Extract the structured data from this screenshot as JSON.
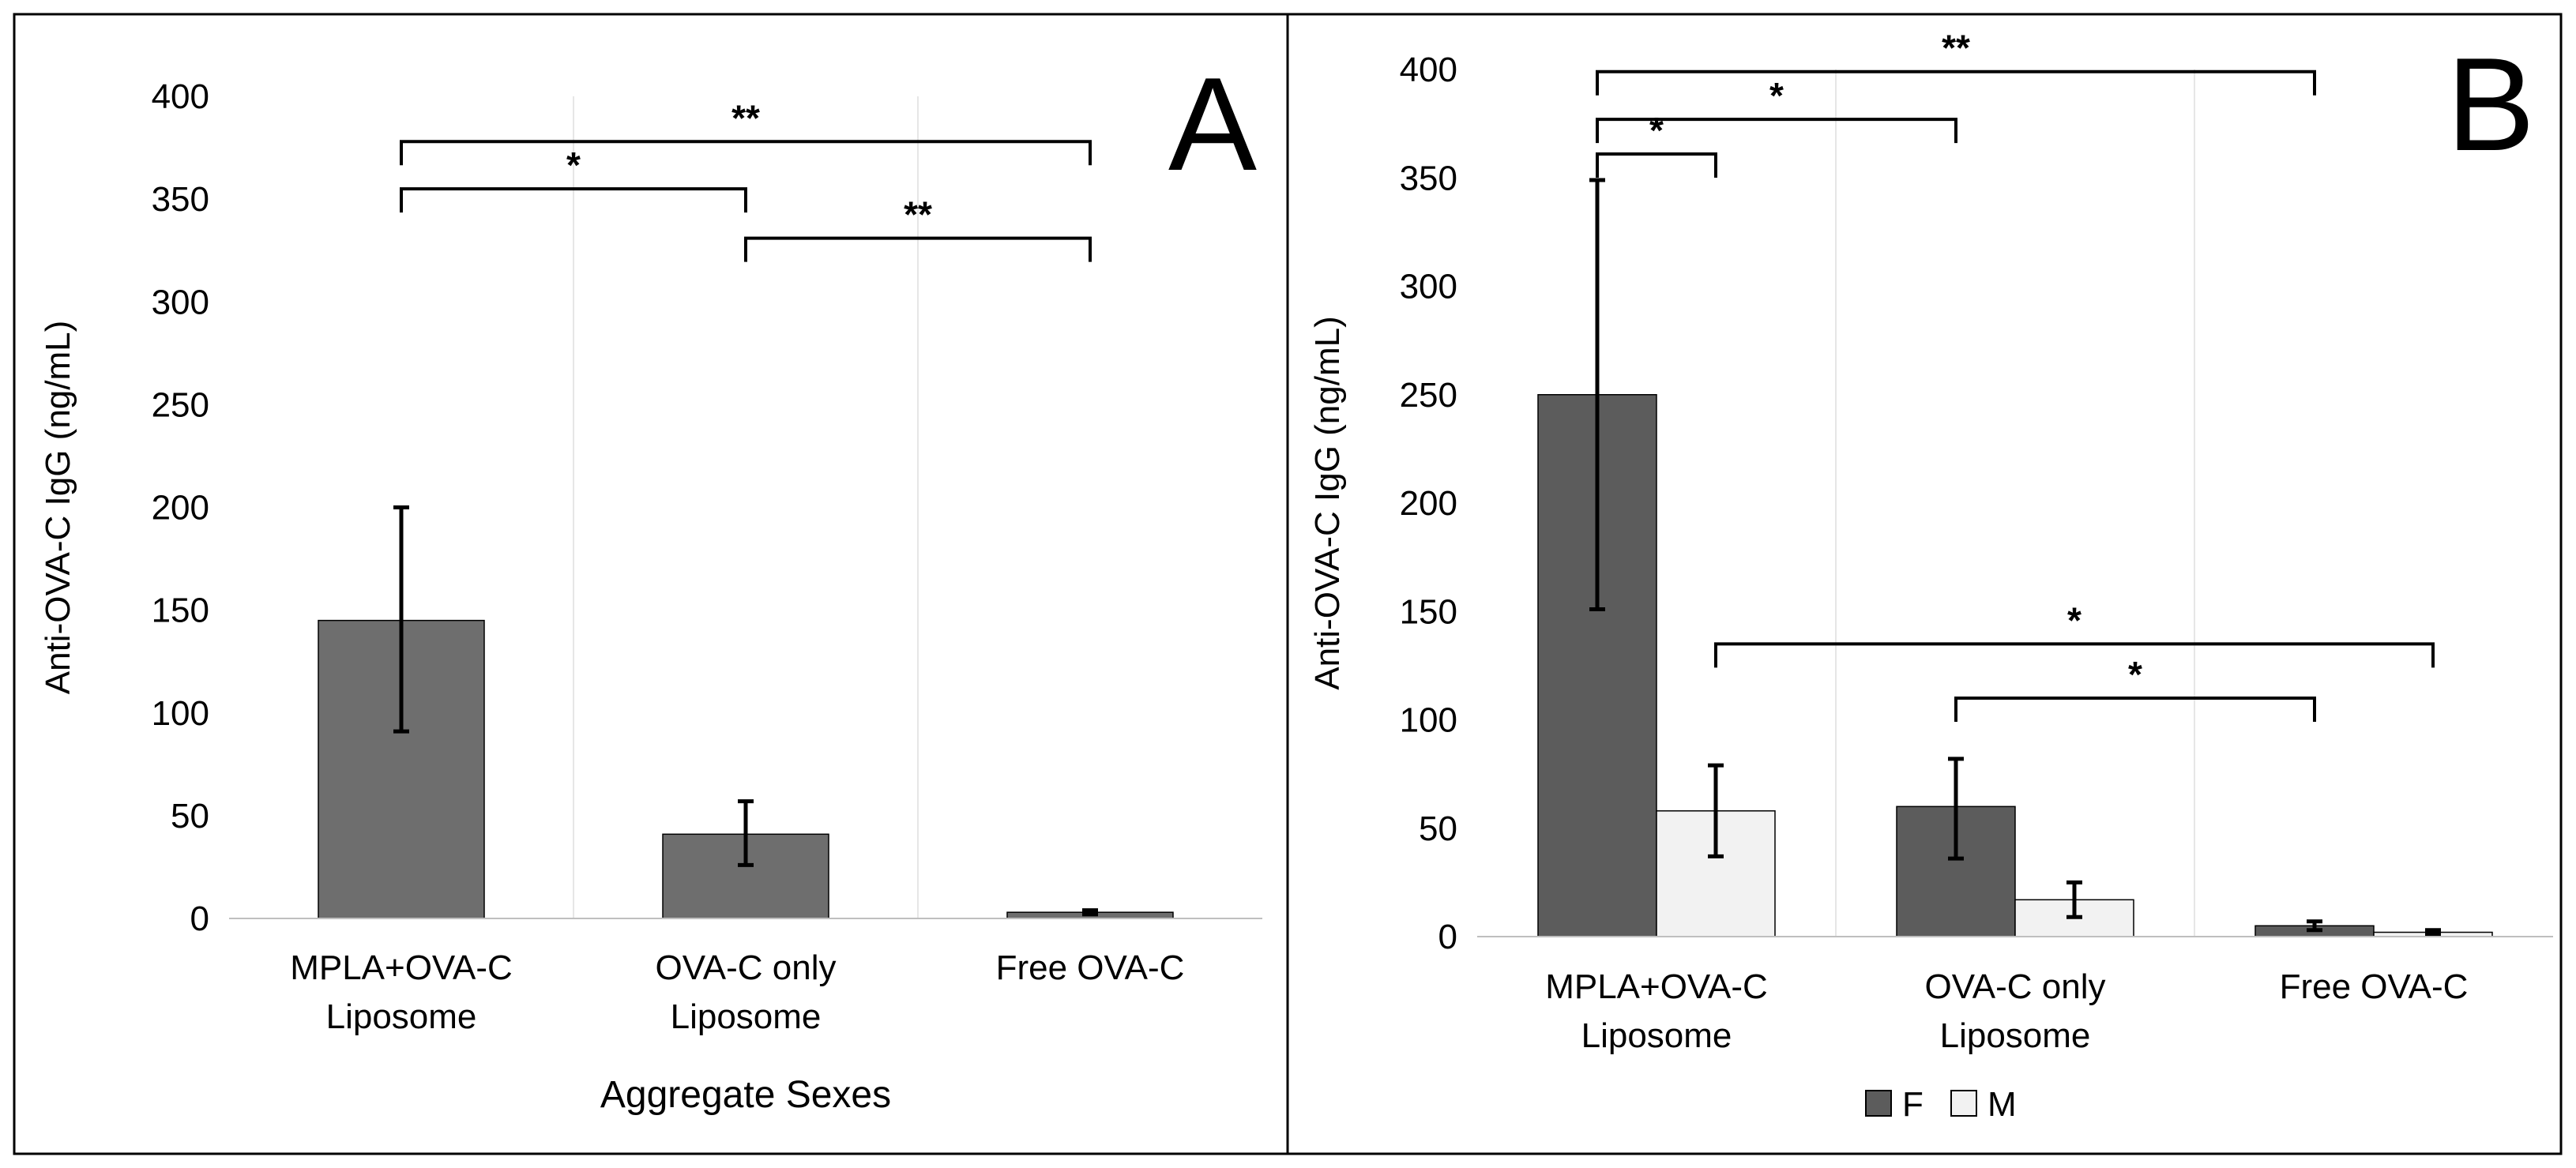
{
  "colors": {
    "bar_dark": "#5c5c5c",
    "bar_medium": "#6e6e6e",
    "bar_light": "#f2f2f2",
    "frame": "#000000",
    "grid": "#e6e6e6"
  },
  "chart_data": [
    {
      "type": "bar",
      "panel_label": "A",
      "title": "",
      "xlabel": "Aggregate Sexes",
      "ylabel": "Anti-OVA-C IgG (ng/mL)",
      "ylim": [
        0,
        400
      ],
      "yticks": [
        "0",
        "50",
        "100",
        "150",
        "200",
        "250",
        "300",
        "350",
        "400"
      ],
      "categories": [
        [
          "MPLA+OVA-C",
          "Liposome"
        ],
        [
          "OVA-C only",
          "Liposome"
        ],
        [
          "Free OVA-C"
        ]
      ],
      "series": [
        {
          "name": "Aggregate",
          "values": [
            145,
            41,
            3
          ],
          "error_low": [
            91,
            26,
            2
          ],
          "error_high": [
            200,
            57,
            4
          ]
        }
      ],
      "significance": [
        {
          "from": 0,
          "to": 1,
          "level": 355,
          "label": "*"
        },
        {
          "from": 0,
          "to": 2,
          "level": 378,
          "label": "**"
        },
        {
          "from": 1,
          "to": 2,
          "level": 331,
          "label": "**"
        }
      ]
    },
    {
      "type": "bar",
      "panel_label": "B",
      "title": "",
      "xlabel": "",
      "ylabel": "Anti-OVA-C IgG (ng/mL)",
      "ylim": [
        0,
        400
      ],
      "yticks": [
        "0",
        "50",
        "100",
        "150",
        "200",
        "250",
        "300",
        "350",
        "400"
      ],
      "categories": [
        [
          "MPLA+OVA-C",
          "Liposome"
        ],
        [
          "OVA-C only",
          "Liposome"
        ],
        [
          "Free OVA-C"
        ]
      ],
      "legend": {
        "position": "bottom",
        "entries": [
          "F",
          "M"
        ]
      },
      "series": [
        {
          "name": "F",
          "values": [
            250,
            60,
            5
          ],
          "error_low": [
            151,
            36,
            3
          ],
          "error_high": [
            349,
            82,
            7
          ]
        },
        {
          "name": "M",
          "values": [
            58,
            17,
            2
          ],
          "error_low": [
            37,
            9,
            1
          ],
          "error_high": [
            79,
            25,
            3
          ]
        }
      ],
      "significance": [
        {
          "from": [
            0,
            0
          ],
          "to": [
            0,
            1
          ],
          "level": 361,
          "label": "*"
        },
        {
          "from": [
            0,
            0
          ],
          "to": [
            1,
            0
          ],
          "level": 377,
          "label": "*"
        },
        {
          "from": [
            0,
            0
          ],
          "to": [
            2,
            0
          ],
          "level": 399,
          "label": "**"
        },
        {
          "from": [
            0,
            1
          ],
          "to": [
            2,
            1
          ],
          "level": 135,
          "label": "*"
        },
        {
          "from": [
            1,
            0
          ],
          "to": [
            2,
            0
          ],
          "level": 110,
          "label": "*"
        }
      ]
    }
  ]
}
